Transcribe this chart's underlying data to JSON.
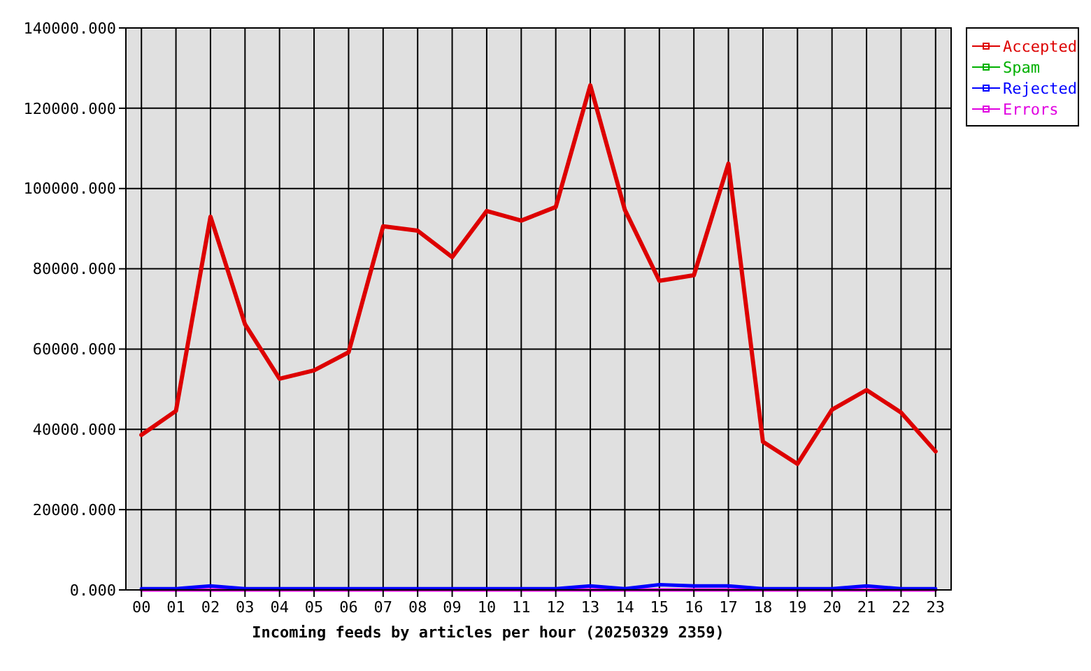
{
  "chart_data": {
    "type": "line",
    "xlabel": "Incoming feeds by articles per hour (20250329 2359)",
    "categories": [
      "00",
      "01",
      "02",
      "03",
      "04",
      "05",
      "06",
      "07",
      "08",
      "09",
      "10",
      "11",
      "12",
      "13",
      "14",
      "15",
      "16",
      "17",
      "18",
      "19",
      "20",
      "21",
      "22",
      "23"
    ],
    "series": [
      {
        "name": "Accepted",
        "color": "#dd0000",
        "values": [
          38600,
          44600,
          93000,
          66200,
          52600,
          54700,
          59200,
          90600,
          89500,
          82900,
          94400,
          92000,
          95400,
          125700,
          94700,
          77000,
          78400,
          106200,
          36900,
          31400,
          44900,
          49800,
          44200,
          34500
        ]
      },
      {
        "name": "Spam",
        "color": "#00b000",
        "values": [
          null,
          null,
          null,
          null,
          null,
          null,
          null,
          null,
          null,
          null,
          null,
          null,
          null,
          null,
          null,
          null,
          null,
          null,
          null,
          null,
          null,
          null,
          null,
          null
        ]
      },
      {
        "name": "Rejected",
        "color": "#0000ff",
        "values": [
          300,
          300,
          1000,
          300,
          300,
          300,
          300,
          300,
          300,
          300,
          300,
          300,
          300,
          1000,
          300,
          1300,
          1000,
          1000,
          300,
          300,
          300,
          1000,
          300,
          300
        ]
      },
      {
        "name": "Errors",
        "color": "#e000e0",
        "values": [
          0,
          0,
          0,
          0,
          0,
          0,
          0,
          0,
          0,
          0,
          0,
          0,
          0,
          0,
          0,
          0,
          0,
          0,
          0,
          0,
          0,
          0,
          0,
          0
        ]
      }
    ],
    "ylim": [
      0,
      140000
    ],
    "yticks": [
      {
        "value": 0,
        "label": "0.000"
      },
      {
        "value": 20000,
        "label": "20000.000"
      },
      {
        "value": 40000,
        "label": "40000.000"
      },
      {
        "value": 60000,
        "label": "60000.000"
      },
      {
        "value": 80000,
        "label": "80000.000"
      },
      {
        "value": 100000,
        "label": "100000.000"
      },
      {
        "value": 120000,
        "label": "120000.000"
      },
      {
        "value": 140000,
        "label": "140000.000"
      }
    ],
    "grid": true,
    "legend": "right"
  }
}
